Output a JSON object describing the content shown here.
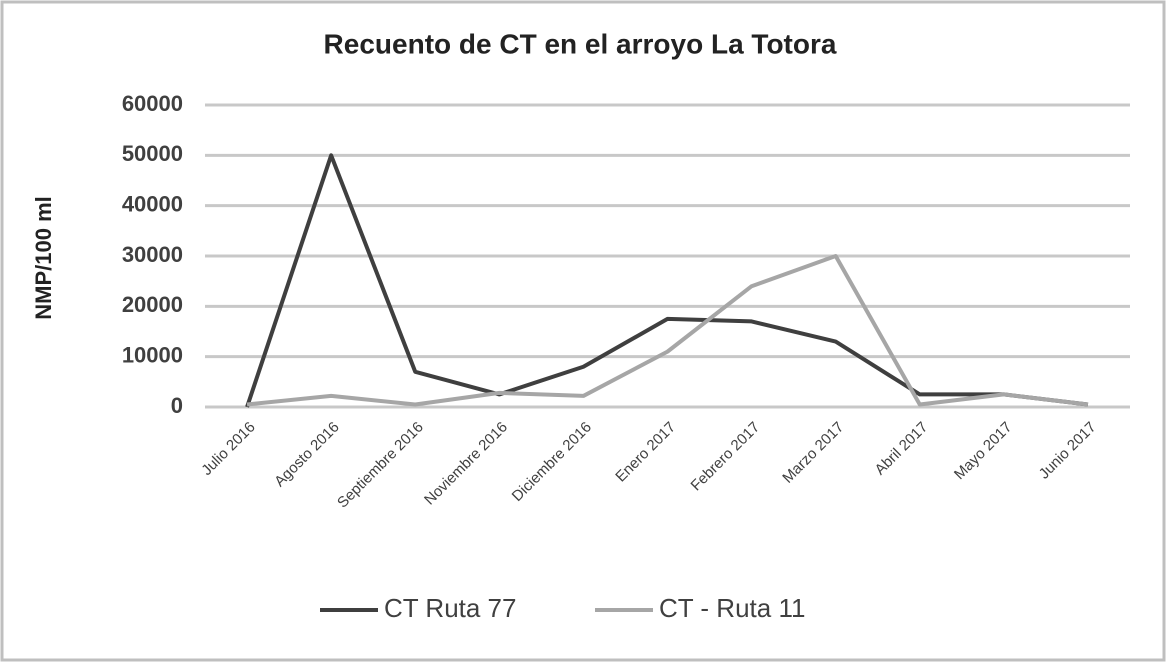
{
  "chart_data": {
    "type": "line",
    "title": "Recuento de CT en el arroyo La Totora",
    "y_label": "NMP/100 ml",
    "categories": [
      "Julio 2016",
      "Agosto 2016",
      "Septiembre 2016",
      "Noviembre 2016",
      "Diciembre 2016",
      "Enero 2017",
      "Febrero 2017",
      "Marzo 2017",
      "Abril 2017",
      "Mayo 2017",
      "Junio 2017"
    ],
    "series": [
      {
        "name": "CT Ruta 77",
        "color": "#3f3f3f",
        "values": [
          0,
          50000,
          7000,
          2500,
          8000,
          17500,
          17000,
          13000,
          2500,
          2500,
          500
        ]
      },
      {
        "name": "CT - Ruta 11",
        "color": "#a6a6a6",
        "values": [
          500,
          2200,
          500,
          2800,
          2200,
          11000,
          24000,
          30000,
          500,
          2500,
          500
        ]
      }
    ],
    "ylim": [
      0,
      60000
    ],
    "yticks": [
      0,
      10000,
      20000,
      30000,
      40000,
      50000,
      60000
    ],
    "grid": true,
    "legend": "bottom"
  }
}
